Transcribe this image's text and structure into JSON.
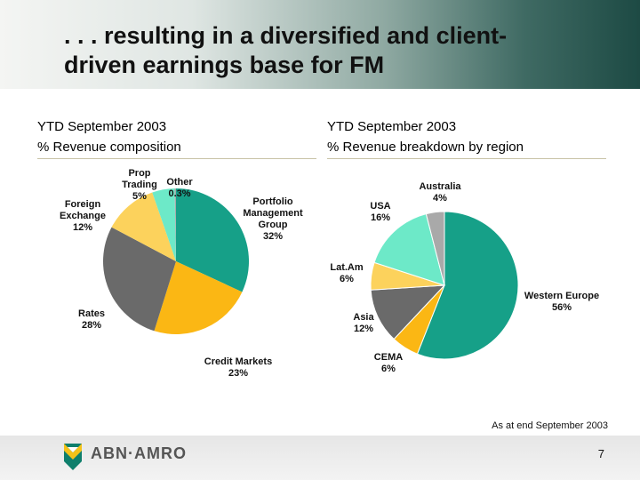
{
  "slide": {
    "title_line1": ". . . resulting in a diversified and client-",
    "title_line2": "driven earnings base for FM",
    "note": "As at end September 2003",
    "page_number": "7",
    "logo_text": "ABN·AMRO"
  },
  "panels": [
    {
      "period": "YTD September 2003",
      "subtitle": "%  Revenue composition"
    },
    {
      "period": "YTD September 2003",
      "subtitle": "%  Revenue breakdown by region"
    }
  ],
  "chart_data": [
    {
      "type": "pie",
      "title": "% Revenue composition",
      "period": "YTD September 2003",
      "start_angle_deg": 0,
      "slices": [
        {
          "label": "Portfolio Management Group",
          "lines": [
            "Portfolio",
            "Management",
            "Group"
          ],
          "pct_label": "32%",
          "value": 32,
          "color": "#16a088"
        },
        {
          "label": "Credit Markets",
          "lines": [
            "Credit Markets"
          ],
          "pct_label": "23%",
          "value": 23,
          "color": "#fbb714"
        },
        {
          "label": "Rates",
          "lines": [
            "Rates"
          ],
          "pct_label": "28%",
          "value": 28,
          "color": "#6a6a6a"
        },
        {
          "label": "Foreign Exchange",
          "lines": [
            "Foreign",
            "Exchange"
          ],
          "pct_label": "12%",
          "value": 12,
          "color": "#fcd25c"
        },
        {
          "label": "Prop Trading",
          "lines": [
            "Prop",
            "Trading"
          ],
          "pct_label": "5%",
          "value": 5,
          "color": "#6de9c8"
        },
        {
          "label": "Other",
          "lines": [
            "Other"
          ],
          "pct_label": "0.3%",
          "value": 0.3,
          "color": "#a9a9a9"
        }
      ]
    },
    {
      "type": "pie",
      "title": "% Revenue breakdown by region",
      "period": "YTD September 2003",
      "start_angle_deg": 0,
      "slices": [
        {
          "label": "Western Europe",
          "lines": [
            "Western Europe"
          ],
          "pct_label": "56%",
          "value": 56,
          "color": "#16a088"
        },
        {
          "label": "CEMA",
          "lines": [
            "CEMA"
          ],
          "pct_label": "6%",
          "value": 6,
          "color": "#fbb714"
        },
        {
          "label": "Asia",
          "lines": [
            "Asia"
          ],
          "pct_label": "12%",
          "value": 12,
          "color": "#6a6a6a"
        },
        {
          "label": "Lat.Am",
          "lines": [
            "Lat.Am"
          ],
          "pct_label": "6%",
          "value": 6,
          "color": "#fcd25c"
        },
        {
          "label": "USA",
          "lines": [
            "USA"
          ],
          "pct_label": "16%",
          "value": 16,
          "color": "#6de9c8"
        },
        {
          "label": "Australia",
          "lines": [
            "Australia"
          ],
          "pct_label": "4%",
          "value": 4,
          "color": "#a9a9a9"
        }
      ]
    }
  ]
}
